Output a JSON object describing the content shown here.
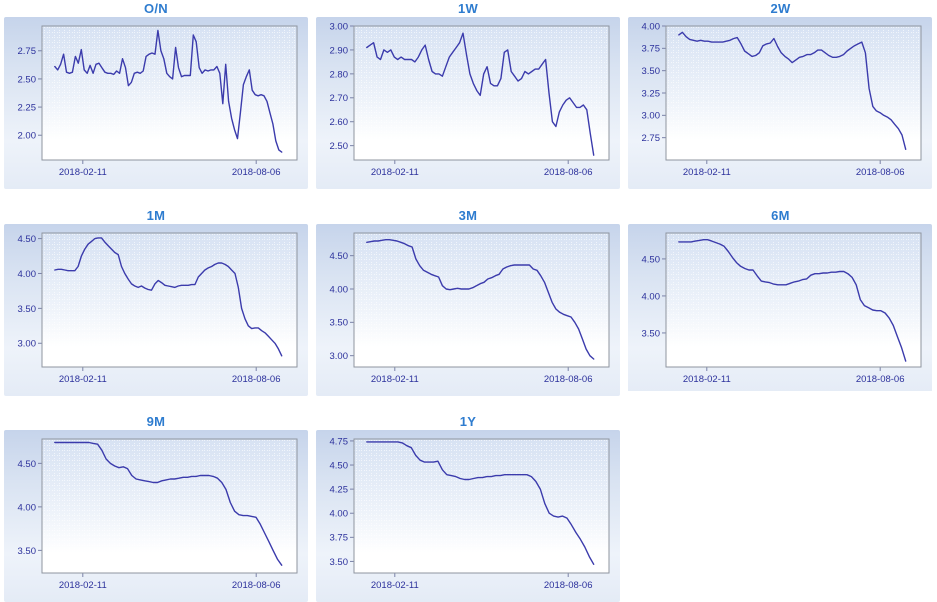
{
  "styles": {
    "title_color": "#2e7ccf",
    "tick_label_color": "#2c319c",
    "line_color": "#3b3bac",
    "plot_border_color": "#8f959f",
    "tick_mark_color": "#7a82a8",
    "plot_bg_top": "#d7e2f3",
    "plot_bg_mid": "#eef3fa",
    "plot_bg_bottom": "#ffffff",
    "grid_dot_color": "rgba(255,255,255,0.6)"
  },
  "chart_data": [
    {
      "type": "line",
      "title": "O/N",
      "y_axis": {
        "tick_labels": [
          "2.75",
          "2.50",
          "2.25",
          "2.00"
        ],
        "range": [
          1.78,
          2.97
        ]
      },
      "x_axis": {
        "tick_labels": [
          "2018-02-11",
          "2018-08-06"
        ],
        "tick_positions_pct": [
          16,
          84
        ]
      },
      "series": [
        {
          "name": "O/N",
          "x_span_pct": [
            5,
            94
          ],
          "values": [
            2.61,
            2.58,
            2.63,
            2.72,
            2.56,
            2.55,
            2.56,
            2.7,
            2.64,
            2.76,
            2.58,
            2.55,
            2.62,
            2.55,
            2.63,
            2.64,
            2.6,
            2.56,
            2.55,
            2.55,
            2.54,
            2.57,
            2.55,
            2.68,
            2.6,
            2.44,
            2.47,
            2.55,
            2.56,
            2.55,
            2.57,
            2.7,
            2.72,
            2.73,
            2.72,
            2.93,
            2.75,
            2.68,
            2.55,
            2.52,
            2.5,
            2.78,
            2.6,
            2.52,
            2.53,
            2.53,
            2.53,
            2.89,
            2.83,
            2.6,
            2.55,
            2.58,
            2.57,
            2.58,
            2.58,
            2.61,
            2.55,
            2.28,
            2.63,
            2.3,
            2.15,
            2.05,
            1.97,
            2.2,
            2.45,
            2.52,
            2.58,
            2.4,
            2.36,
            2.35,
            2.36,
            2.35,
            2.3,
            2.2,
            2.1,
            1.95,
            1.87,
            1.85
          ]
        }
      ]
    },
    {
      "type": "line",
      "title": "1W",
      "y_axis": {
        "tick_labels": [
          "3.00",
          "2.90",
          "2.80",
          "2.70",
          "2.60",
          "2.50"
        ],
        "range": [
          2.44,
          3.0
        ]
      },
      "x_axis": {
        "tick_labels": [
          "2018-02-11",
          "2018-08-06"
        ],
        "tick_positions_pct": [
          16,
          84
        ]
      },
      "series": [
        {
          "name": "1W",
          "x_span_pct": [
            5,
            94
          ],
          "values": [
            2.91,
            2.92,
            2.93,
            2.87,
            2.86,
            2.9,
            2.89,
            2.9,
            2.87,
            2.86,
            2.87,
            2.86,
            2.86,
            2.86,
            2.85,
            2.87,
            2.9,
            2.92,
            2.86,
            2.81,
            2.8,
            2.8,
            2.79,
            2.83,
            2.87,
            2.89,
            2.91,
            2.93,
            2.97,
            2.88,
            2.8,
            2.76,
            2.73,
            2.71,
            2.8,
            2.83,
            2.76,
            2.75,
            2.75,
            2.78,
            2.89,
            2.9,
            2.81,
            2.79,
            2.77,
            2.78,
            2.81,
            2.8,
            2.81,
            2.82,
            2.82,
            2.84,
            2.86,
            2.72,
            2.6,
            2.58,
            2.64,
            2.67,
            2.69,
            2.7,
            2.68,
            2.66,
            2.66,
            2.67,
            2.65,
            2.55,
            2.46
          ]
        }
      ]
    },
    {
      "type": "line",
      "title": "2W",
      "y_axis": {
        "tick_labels": [
          "4.00",
          "3.75",
          "3.50",
          "3.25",
          "3.00",
          "2.75"
        ],
        "range": [
          2.5,
          4.0
        ]
      },
      "x_axis": {
        "tick_labels": [
          "2018-02-11",
          "2018-08-06"
        ],
        "tick_positions_pct": [
          16,
          84
        ]
      },
      "series": [
        {
          "name": "2W",
          "x_span_pct": [
            5,
            94
          ],
          "values": [
            3.9,
            3.93,
            3.88,
            3.85,
            3.84,
            3.83,
            3.84,
            3.83,
            3.83,
            3.82,
            3.82,
            3.82,
            3.82,
            3.83,
            3.84,
            3.86,
            3.87,
            3.8,
            3.72,
            3.69,
            3.66,
            3.67,
            3.7,
            3.78,
            3.8,
            3.81,
            3.86,
            3.77,
            3.7,
            3.66,
            3.63,
            3.59,
            3.62,
            3.65,
            3.66,
            3.68,
            3.68,
            3.7,
            3.73,
            3.73,
            3.7,
            3.67,
            3.65,
            3.65,
            3.66,
            3.68,
            3.72,
            3.75,
            3.78,
            3.8,
            3.82,
            3.7,
            3.3,
            3.1,
            3.05,
            3.03,
            3.0,
            2.98,
            2.95,
            2.9,
            2.85,
            2.78,
            2.62
          ]
        }
      ]
    },
    {
      "type": "line",
      "title": "1M",
      "y_axis": {
        "tick_labels": [
          "4.50",
          "4.00",
          "3.50",
          "3.00"
        ],
        "range": [
          2.66,
          4.58
        ]
      },
      "x_axis": {
        "tick_labels": [
          "2018-02-11",
          "2018-08-06"
        ],
        "tick_positions_pct": [
          16,
          84
        ]
      },
      "series": [
        {
          "name": "1M",
          "x_span_pct": [
            5,
            94
          ],
          "values": [
            4.05,
            4.06,
            4.06,
            4.05,
            4.04,
            4.04,
            4.04,
            4.1,
            4.25,
            4.35,
            4.42,
            4.46,
            4.5,
            4.51,
            4.51,
            4.45,
            4.4,
            4.35,
            4.3,
            4.27,
            4.1,
            4.0,
            3.92,
            3.85,
            3.82,
            3.8,
            3.82,
            3.79,
            3.77,
            3.76,
            3.85,
            3.9,
            3.87,
            3.83,
            3.82,
            3.81,
            3.8,
            3.82,
            3.83,
            3.83,
            3.83,
            3.84,
            3.84,
            3.95,
            4.0,
            4.05,
            4.08,
            4.1,
            4.13,
            4.15,
            4.15,
            4.13,
            4.1,
            4.05,
            4.0,
            3.8,
            3.5,
            3.35,
            3.25,
            3.21,
            3.22,
            3.22,
            3.18,
            3.15,
            3.1,
            3.05,
            3.0,
            2.92,
            2.82
          ]
        }
      ]
    },
    {
      "type": "line",
      "title": "3M",
      "y_axis": {
        "tick_labels": [
          "4.50",
          "4.00",
          "3.50",
          "3.00"
        ],
        "range": [
          2.83,
          4.84
        ]
      },
      "x_axis": {
        "tick_labels": [
          "2018-02-11",
          "2018-08-06"
        ],
        "tick_positions_pct": [
          16,
          84
        ]
      },
      "series": [
        {
          "name": "3M",
          "x_span_pct": [
            5,
            94
          ],
          "values": [
            4.7,
            4.71,
            4.72,
            4.72,
            4.73,
            4.74,
            4.74,
            4.73,
            4.72,
            4.7,
            4.68,
            4.65,
            4.63,
            4.45,
            4.35,
            4.28,
            4.25,
            4.22,
            4.2,
            4.18,
            4.05,
            4.0,
            3.99,
            4.0,
            4.01,
            4.0,
            4.0,
            4.0,
            4.02,
            4.05,
            4.08,
            4.1,
            4.15,
            4.17,
            4.2,
            4.22,
            4.3,
            4.33,
            4.35,
            4.36,
            4.36,
            4.36,
            4.36,
            4.36,
            4.3,
            4.28,
            4.2,
            4.1,
            3.95,
            3.8,
            3.7,
            3.65,
            3.62,
            3.6,
            3.58,
            3.5,
            3.4,
            3.25,
            3.1,
            3.0,
            2.95
          ]
        }
      ]
    },
    {
      "type": "line",
      "title": "6M",
      "y_axis": {
        "tick_labels": [
          "4.50",
          "4.00",
          "3.50"
        ],
        "range": [
          3.04,
          4.85
        ]
      },
      "x_axis": {
        "tick_labels": [
          "2018-02-11",
          "2018-08-06"
        ],
        "tick_positions_pct": [
          16,
          84
        ]
      },
      "series": [
        {
          "name": "6M",
          "x_span_pct": [
            5,
            94
          ],
          "values": [
            4.73,
            4.73,
            4.73,
            4.73,
            4.74,
            4.75,
            4.76,
            4.76,
            4.74,
            4.72,
            4.7,
            4.67,
            4.6,
            4.52,
            4.45,
            4.4,
            4.37,
            4.35,
            4.35,
            4.27,
            4.2,
            4.19,
            4.18,
            4.16,
            4.15,
            4.15,
            4.15,
            4.17,
            4.19,
            4.2,
            4.22,
            4.23,
            4.28,
            4.3,
            4.3,
            4.31,
            4.31,
            4.32,
            4.32,
            4.33,
            4.33,
            4.3,
            4.25,
            4.15,
            3.95,
            3.87,
            3.84,
            3.81,
            3.8,
            3.8,
            3.77,
            3.7,
            3.6,
            3.45,
            3.3,
            3.12
          ]
        }
      ]
    },
    {
      "type": "line",
      "title": "9M",
      "y_axis": {
        "tick_labels": [
          "4.50",
          "4.00",
          "3.50"
        ],
        "range": [
          3.24,
          4.78
        ]
      },
      "x_axis": {
        "tick_labels": [
          "2018-02-11",
          "2018-08-06"
        ],
        "tick_positions_pct": [
          16,
          84
        ]
      },
      "series": [
        {
          "name": "9M",
          "x_span_pct": [
            5,
            94
          ],
          "values": [
            4.74,
            4.74,
            4.74,
            4.74,
            4.74,
            4.74,
            4.74,
            4.74,
            4.74,
            4.73,
            4.72,
            4.65,
            4.55,
            4.5,
            4.47,
            4.45,
            4.46,
            4.44,
            4.36,
            4.32,
            4.31,
            4.3,
            4.29,
            4.28,
            4.28,
            4.3,
            4.31,
            4.32,
            4.32,
            4.33,
            4.34,
            4.34,
            4.35,
            4.35,
            4.36,
            4.36,
            4.36,
            4.35,
            4.33,
            4.28,
            4.2,
            4.05,
            3.95,
            3.91,
            3.9,
            3.9,
            3.89,
            3.88,
            3.8,
            3.7,
            3.6,
            3.5,
            3.4,
            3.33
          ]
        }
      ]
    },
    {
      "type": "line",
      "title": "1Y",
      "y_axis": {
        "tick_labels": [
          "4.75",
          "4.50",
          "4.25",
          "4.00",
          "3.75",
          "3.50"
        ],
        "range": [
          3.38,
          4.77
        ]
      },
      "x_axis": {
        "tick_labels": [
          "2018-02-11",
          "2018-08-06"
        ],
        "tick_positions_pct": [
          16,
          84
        ]
      },
      "series": [
        {
          "name": "1Y",
          "x_span_pct": [
            5,
            94
          ],
          "values": [
            4.74,
            4.74,
            4.74,
            4.74,
            4.74,
            4.74,
            4.74,
            4.74,
            4.73,
            4.7,
            4.68,
            4.6,
            4.55,
            4.53,
            4.53,
            4.53,
            4.54,
            4.45,
            4.4,
            4.39,
            4.38,
            4.36,
            4.35,
            4.35,
            4.36,
            4.37,
            4.37,
            4.38,
            4.38,
            4.39,
            4.39,
            4.4,
            4.4,
            4.4,
            4.4,
            4.4,
            4.4,
            4.38,
            4.33,
            4.25,
            4.1,
            4.0,
            3.97,
            3.96,
            3.97,
            3.95,
            3.88,
            3.8,
            3.73,
            3.65,
            3.55,
            3.47
          ]
        }
      ]
    }
  ]
}
